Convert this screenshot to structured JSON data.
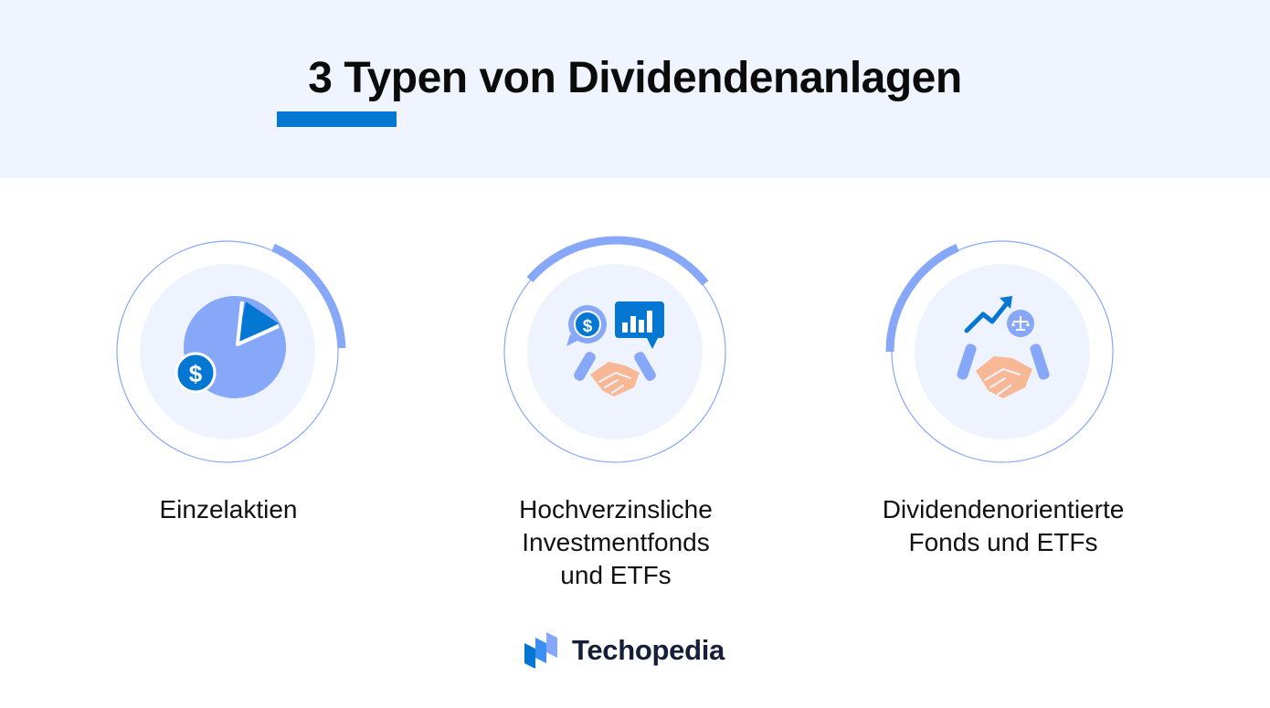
{
  "title": "3 Typen von Dividendenanlagen",
  "colors": {
    "header_bg": "#eff4fe",
    "accent_blue": "#0477d3",
    "icon_light_blue": "#87a8f8",
    "circle_fill": "#eef3fe",
    "hand_skin": "#f8b896",
    "text": "#111111"
  },
  "items": [
    {
      "label": "Einzelaktien",
      "icon": "pie-chart-dollar-icon"
    },
    {
      "label": "Hochverzinsliche\nInvestmentfonds\nund ETFs",
      "icon": "handshake-dollar-chart-icon"
    },
    {
      "label": "Dividendenorientierte\nFonds und ETFs",
      "icon": "handshake-growth-scale-icon"
    }
  ],
  "brand": {
    "name": "Techopedia",
    "icon": "techopedia-logo-icon"
  }
}
